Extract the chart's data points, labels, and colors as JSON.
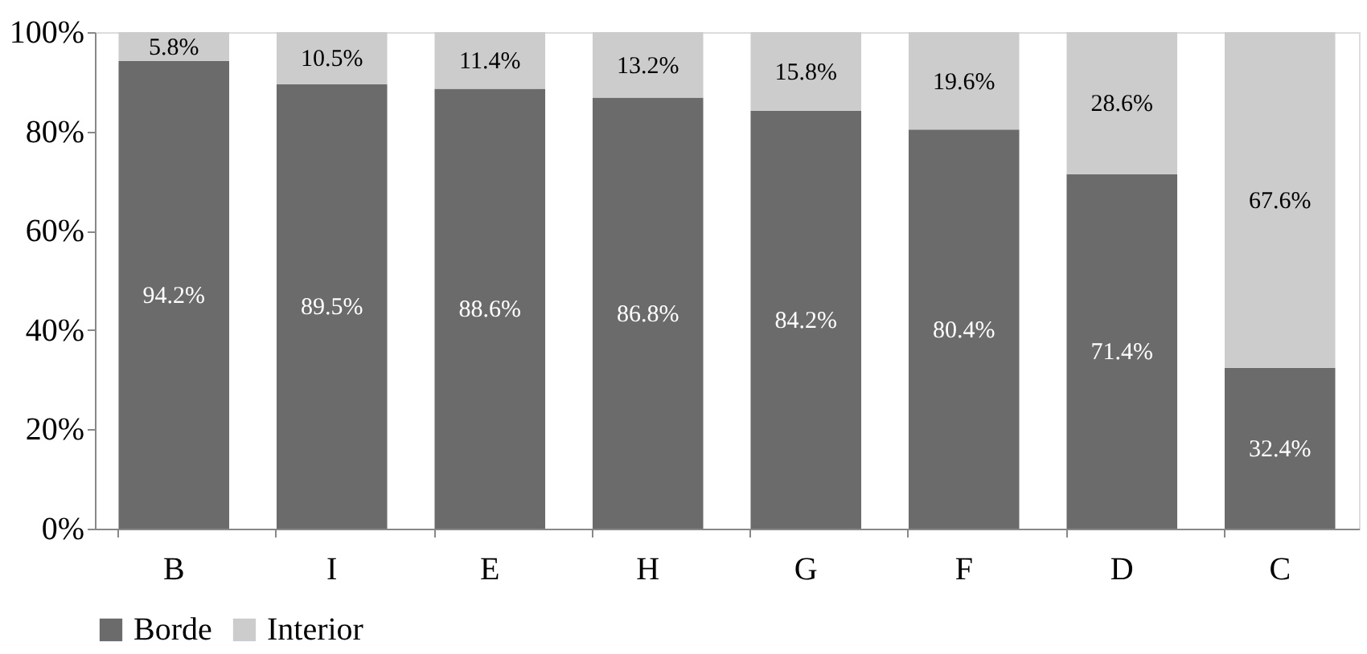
{
  "chart_data": {
    "type": "bar",
    "stacked": true,
    "categories": [
      "B",
      "I",
      "E",
      "H",
      "G",
      "F",
      "D",
      "C"
    ],
    "series": [
      {
        "name": "Borde",
        "color": "#6b6b6b",
        "values": [
          94.2,
          89.5,
          88.6,
          86.8,
          84.2,
          80.4,
          71.4,
          32.4
        ],
        "value_labels": [
          "94.2%",
          "89.5%",
          "88.6%",
          "86.8%",
          "84.2%",
          "80.4%",
          "71.4%",
          "32.4%"
        ]
      },
      {
        "name": "Interior",
        "color": "#cccccc",
        "values": [
          5.8,
          10.5,
          11.4,
          13.2,
          15.8,
          19.6,
          28.6,
          67.6
        ],
        "value_labels": [
          "5.8%",
          "10.5%",
          "11.4%",
          "13.2%",
          "15.8%",
          "19.6%",
          "28.6%",
          "67.6%"
        ]
      }
    ],
    "ylim": [
      0,
      100
    ],
    "yticks": [
      {
        "value": 0,
        "label": "0%"
      },
      {
        "value": 20,
        "label": "20%"
      },
      {
        "value": 40,
        "label": "40%"
      },
      {
        "value": 60,
        "label": "60%"
      },
      {
        "value": 80,
        "label": "80%"
      },
      {
        "value": 100,
        "label": "100%"
      }
    ],
    "grid": false,
    "legend": "bottom"
  }
}
